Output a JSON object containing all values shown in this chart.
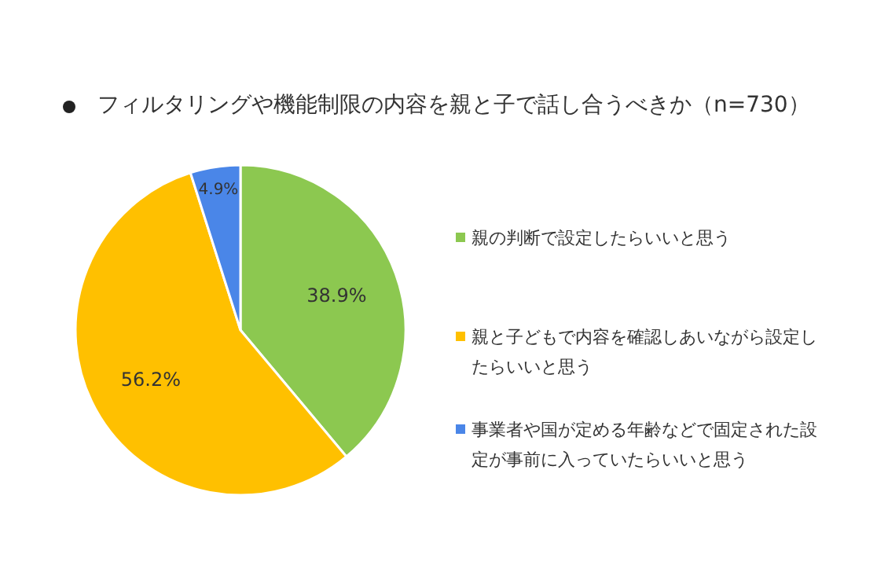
{
  "chart_data": {
    "type": "pie",
    "title": "フィルタリングや機能制限の内容を親と子で話し合うべきか（n=730）",
    "categories": [
      "親の判断で設定したらいいと思う",
      "親と子どもで内容を確認しあいながら設定したらいいと思う",
      "事業者や国が定める年齢などで固定された設定が事前に入っていたらいいと思う"
    ],
    "values": [
      38.9,
      56.2,
      4.9
    ],
    "colors": [
      "#8cc850",
      "#ffc000",
      "#4a86e8"
    ],
    "value_labels": [
      "38.9%",
      "56.2%",
      "4.9%"
    ],
    "legend": "right"
  }
}
